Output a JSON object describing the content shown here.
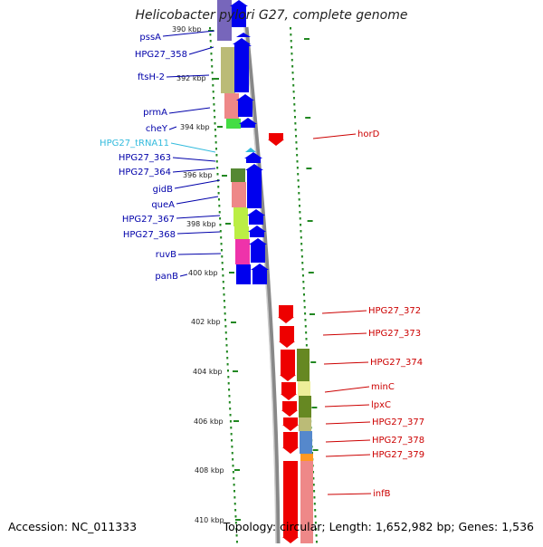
{
  "title": "Helicobacter pylori G27, complete genome",
  "footer": {
    "accession": "Accession: NC_011333",
    "summary": "Topology: circular; Length: 1,652,982 bp; Genes: 1,536"
  },
  "ticks": [
    {
      "label": "390 kbp",
      "kbp": 390
    },
    {
      "label": "392 kbp",
      "kbp": 392
    },
    {
      "label": "394 kbp",
      "kbp": 394
    },
    {
      "label": "396 kbp",
      "kbp": 396
    },
    {
      "label": "398 kbp",
      "kbp": 398
    },
    {
      "label": "400 kbp",
      "kbp": 400
    },
    {
      "label": "402 kbp",
      "kbp": 402
    },
    {
      "label": "404 kbp",
      "kbp": 404
    },
    {
      "label": "406 kbp",
      "kbp": 406
    },
    {
      "label": "408 kbp",
      "kbp": 408
    },
    {
      "label": "410 kbp",
      "kbp": 410
    }
  ],
  "colors": {
    "forward": "#0000ee",
    "reverse": "#ee0000",
    "trna": "#33bbdd",
    "tick": "#228822",
    "backbone": "#888888"
  },
  "genes_left": [
    {
      "name": "pssA",
      "color": "#0000aa"
    },
    {
      "name": "HPG27_358",
      "color": "#0000aa"
    },
    {
      "name": "ftsH-2",
      "color": "#0000aa"
    },
    {
      "name": "prmA",
      "color": "#0000aa"
    },
    {
      "name": "cheY",
      "color": "#0000aa"
    },
    {
      "name": "HPG27_tRNA11",
      "color": "#33bbdd"
    },
    {
      "name": "HPG27_363",
      "color": "#0000aa"
    },
    {
      "name": "HPG27_364",
      "color": "#0000aa"
    },
    {
      "name": "gidB",
      "color": "#0000aa"
    },
    {
      "name": "queA",
      "color": "#0000aa"
    },
    {
      "name": "HPG27_367",
      "color": "#0000aa"
    },
    {
      "name": "HPG27_368",
      "color": "#0000aa"
    },
    {
      "name": "ruvB",
      "color": "#0000aa"
    },
    {
      "name": "panB",
      "color": "#0000aa"
    }
  ],
  "genes_right": [
    {
      "name": "horD",
      "color": "#cc0000"
    },
    {
      "name": "HPG27_372",
      "color": "#cc0000"
    },
    {
      "name": "HPG27_373",
      "color": "#cc0000"
    },
    {
      "name": "HPG27_374",
      "color": "#cc0000"
    },
    {
      "name": "minC",
      "color": "#cc0000"
    },
    {
      "name": "lpxC",
      "color": "#cc0000"
    },
    {
      "name": "HPG27_377",
      "color": "#cc0000"
    },
    {
      "name": "HPG27_378",
      "color": "#cc0000"
    },
    {
      "name": "HPG27_379",
      "color": "#cc0000"
    },
    {
      "name": "infB",
      "color": "#cc0000"
    }
  ],
  "cog_colors_left": [
    "#7766bb",
    "#bbbb77",
    "#ee8888",
    "#44dd44",
    "#558833",
    "#ee8888",
    "#bbee44",
    "#bbee44",
    "#ee33aa",
    "#0000ee"
  ],
  "cog_colors_right": [
    "#668822",
    "#eeee99",
    "#668822",
    "#bbbb77",
    "#5588cc",
    "#ff9922",
    "#ee8888"
  ]
}
